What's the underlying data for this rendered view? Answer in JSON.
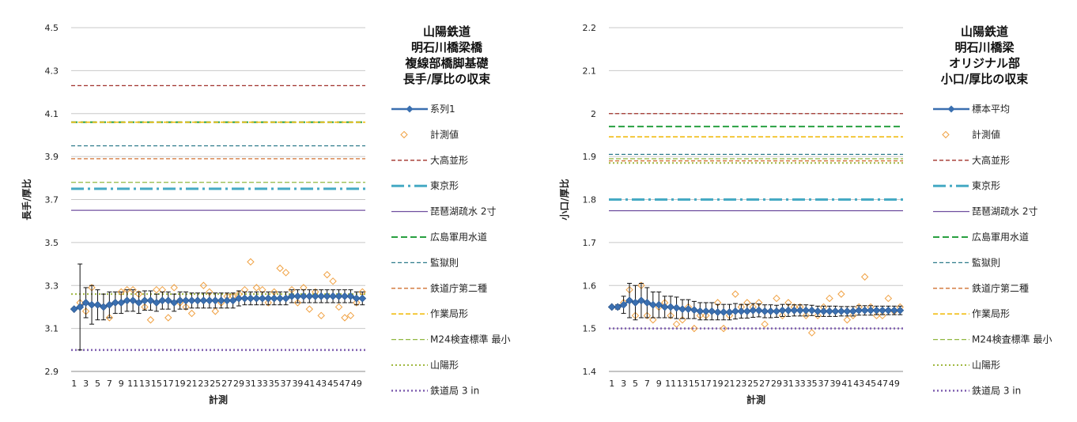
{
  "chart_data": [
    {
      "type": "line",
      "title": [
        "山陽鉄道",
        "明石川橋梁橋",
        "複線部橋脚基礎",
        "長手/厚比の収束"
      ],
      "xlabel": "計測",
      "ylabel": "長手/厚比",
      "ylim": [
        2.9,
        4.5
      ],
      "ystep": 0.2,
      "ytick_decimals": 1,
      "x_tick_labels": [
        "1",
        "3",
        "5",
        "7",
        "9",
        "11",
        "13",
        "15",
        "17",
        "19",
        "21",
        "23",
        "25",
        "27",
        "29",
        "31",
        "33",
        "35",
        "37",
        "39",
        "41",
        "43",
        "45",
        "47",
        "49"
      ],
      "legend_placement": "right",
      "mean_series": {
        "name": "系列1",
        "color": "#3a6fb0",
        "values": [
          3.19,
          3.2,
          3.22,
          3.21,
          3.21,
          3.2,
          3.21,
          3.22,
          3.22,
          3.23,
          3.23,
          3.22,
          3.23,
          3.23,
          3.22,
          3.23,
          3.23,
          3.22,
          3.23,
          3.23,
          3.23,
          3.23,
          3.23,
          3.23,
          3.23,
          3.23,
          3.23,
          3.23,
          3.24,
          3.24,
          3.24,
          3.24,
          3.24,
          3.24,
          3.24,
          3.24,
          3.24,
          3.25,
          3.25,
          3.25,
          3.25,
          3.25,
          3.25,
          3.25,
          3.25,
          3.25,
          3.25,
          3.25,
          3.24,
          3.24
        ],
        "error": [
          0,
          0.2,
          0.07,
          0.09,
          0.07,
          0.06,
          0.06,
          0.05,
          0.05,
          0.05,
          0.05,
          0.05,
          0.045,
          0.045,
          0.04,
          0.04,
          0.04,
          0.04,
          0.04,
          0.04,
          0.035,
          0.035,
          0.035,
          0.035,
          0.035,
          0.035,
          0.035,
          0.035,
          0.035,
          0.03,
          0.03,
          0.03,
          0.03,
          0.03,
          0.03,
          0.03,
          0.03,
          0.03,
          0.03,
          0.03,
          0.03,
          0.03,
          0.03,
          0.03,
          0.03,
          0.03,
          0.03,
          0.03,
          0.03,
          0.03
        ]
      },
      "measured_series": {
        "name": "計測値",
        "color": "#f0a040",
        "values": [
          3.19,
          3.22,
          3.18,
          3.29,
          3.21,
          3.2,
          3.15,
          3.22,
          3.27,
          3.28,
          3.28,
          3.26,
          3.2,
          3.14,
          3.28,
          3.28,
          3.15,
          3.29,
          3.22,
          3.2,
          3.17,
          3.23,
          3.3,
          3.27,
          3.18,
          3.22,
          3.25,
          3.25,
          3.26,
          3.28,
          3.41,
          3.29,
          3.28,
          3.22,
          3.27,
          3.38,
          3.36,
          3.28,
          3.22,
          3.29,
          3.19,
          3.27,
          3.16,
          3.35,
          3.32,
          3.2,
          3.15,
          3.16,
          3.22,
          3.27
        ]
      },
      "reference_lines": [
        {
          "name": "大高並形",
          "value": 4.23,
          "color": "#a0302a",
          "dash": "5,3",
          "width": 1.3
        },
        {
          "name": "東京形",
          "value": 3.75,
          "color": "#46aac4",
          "dash": "16,5,3,5",
          "width": 3
        },
        {
          "name": "琵琶湖疏水 2寸",
          "value": 3.65,
          "color": "#7050a0",
          "dash": "",
          "width": 1.3
        },
        {
          "name": "広島軍用水道",
          "value": 4.06,
          "color": "#28a040",
          "dash": "8,4",
          "width": 2
        },
        {
          "name": "監獄則",
          "value": 3.95,
          "color": "#2b7a8a",
          "dash": "5,3",
          "width": 1.3
        },
        {
          "name": "鉄道庁第二種",
          "value": 3.89,
          "color": "#d07030",
          "dash": "5,3",
          "width": 1.3
        },
        {
          "name": "作業局形",
          "value": 4.06,
          "color": "#f0b800",
          "dash": "6,3",
          "width": 1.5
        },
        {
          "name": "M24検査標準 最小",
          "value": 3.78,
          "color": "#90b840",
          "dash": "6,3",
          "width": 1.3
        },
        {
          "name": "山陽形",
          "value": 3.26,
          "color": "#a0b840",
          "dash": "2,3",
          "width": 2
        },
        {
          "name": "鉄道局 3 in",
          "value": 3.0,
          "color": "#8060b0",
          "dash": "2,3",
          "width": 2.5
        }
      ]
    },
    {
      "type": "line",
      "title": [
        "山陽鉄道",
        "明石川橋梁",
        "オリジナル部",
        "小口/厚比の収束"
      ],
      "xlabel": "計測",
      "ylabel": "小口/厚比",
      "ylim": [
        1.4,
        2.2
      ],
      "ystep": 0.1,
      "ytick_decimals": 1,
      "x_tick_labels": [
        "1",
        "3",
        "5",
        "7",
        "9",
        "11",
        "13",
        "15",
        "17",
        "19",
        "21",
        "23",
        "25",
        "27",
        "29",
        "31",
        "33",
        "35",
        "37",
        "39",
        "41",
        "43",
        "45",
        "47",
        "49"
      ],
      "legend_placement": "right",
      "mean_series": {
        "name": "標本平均",
        "color": "#3a6fb0",
        "values": [
          1.55,
          1.55,
          1.555,
          1.565,
          1.56,
          1.565,
          1.56,
          1.555,
          1.555,
          1.55,
          1.55,
          1.548,
          1.545,
          1.545,
          1.543,
          1.54,
          1.54,
          1.54,
          1.538,
          1.538,
          1.538,
          1.54,
          1.54,
          1.54,
          1.542,
          1.542,
          1.54,
          1.54,
          1.54,
          1.542,
          1.542,
          1.542,
          1.542,
          1.542,
          1.542,
          1.54,
          1.54,
          1.54,
          1.54,
          1.54,
          1.54,
          1.54,
          1.542,
          1.542,
          1.542,
          1.542,
          1.542,
          1.542,
          1.542,
          1.542
        ],
        "error": [
          0,
          0.005,
          0.02,
          0.04,
          0.04,
          0.04,
          0.035,
          0.03,
          0.03,
          0.025,
          0.025,
          0.025,
          0.022,
          0.022,
          0.02,
          0.02,
          0.02,
          0.02,
          0.018,
          0.018,
          0.018,
          0.018,
          0.016,
          0.016,
          0.016,
          0.015,
          0.015,
          0.015,
          0.014,
          0.014,
          0.014,
          0.013,
          0.013,
          0.013,
          0.012,
          0.012,
          0.012,
          0.012,
          0.012,
          0.011,
          0.011,
          0.011,
          0.011,
          0.011,
          0.011,
          0.01,
          0.01,
          0.01,
          0.01,
          0.01
        ]
      },
      "measured_series": {
        "name": "計測値",
        "color": "#f0a040",
        "values": [
          1.55,
          1.55,
          1.56,
          1.59,
          1.53,
          1.6,
          1.53,
          1.52,
          1.55,
          1.56,
          1.53,
          1.51,
          1.52,
          1.55,
          1.5,
          1.53,
          1.53,
          1.54,
          1.56,
          1.5,
          1.53,
          1.58,
          1.55,
          1.56,
          1.55,
          1.56,
          1.51,
          1.54,
          1.57,
          1.53,
          1.56,
          1.55,
          1.55,
          1.53,
          1.49,
          1.53,
          1.55,
          1.57,
          1.54,
          1.58,
          1.52,
          1.53,
          1.55,
          1.62,
          1.55,
          1.53,
          1.53,
          1.57,
          1.54,
          1.55
        ]
      },
      "reference_lines": [
        {
          "name": "大高並形",
          "value": 2.0,
          "color": "#a0302a",
          "dash": "5,3",
          "width": 1.3
        },
        {
          "name": "東京形",
          "value": 1.8,
          "color": "#46aac4",
          "dash": "16,5,3,5",
          "width": 3
        },
        {
          "name": "琵琶湖疏水 2寸",
          "value": 1.774,
          "color": "#7050a0",
          "dash": "",
          "width": 1.3
        },
        {
          "name": "広島軍用水道",
          "value": 1.97,
          "color": "#28a040",
          "dash": "8,4",
          "width": 2
        },
        {
          "name": "監獄則",
          "value": 1.905,
          "color": "#2b7a8a",
          "dash": "5,3",
          "width": 1.3
        },
        {
          "name": "鉄道庁第二種",
          "value": 1.89,
          "color": "#d07030",
          "dash": "5,3",
          "width": 1.3
        },
        {
          "name": "作業局形",
          "value": 1.946,
          "color": "#f0b800",
          "dash": "6,3",
          "width": 1.5
        },
        {
          "name": "M24検査標準 最小",
          "value": 1.895,
          "color": "#90b840",
          "dash": "6,3",
          "width": 1.3
        },
        {
          "name": "山陽形",
          "value": 1.885,
          "color": "#a0b840",
          "dash": "2,3",
          "width": 2
        },
        {
          "name": "鉄道局 3 in",
          "value": 1.5,
          "color": "#8060b0",
          "dash": "2,3",
          "width": 2.5
        }
      ]
    }
  ]
}
